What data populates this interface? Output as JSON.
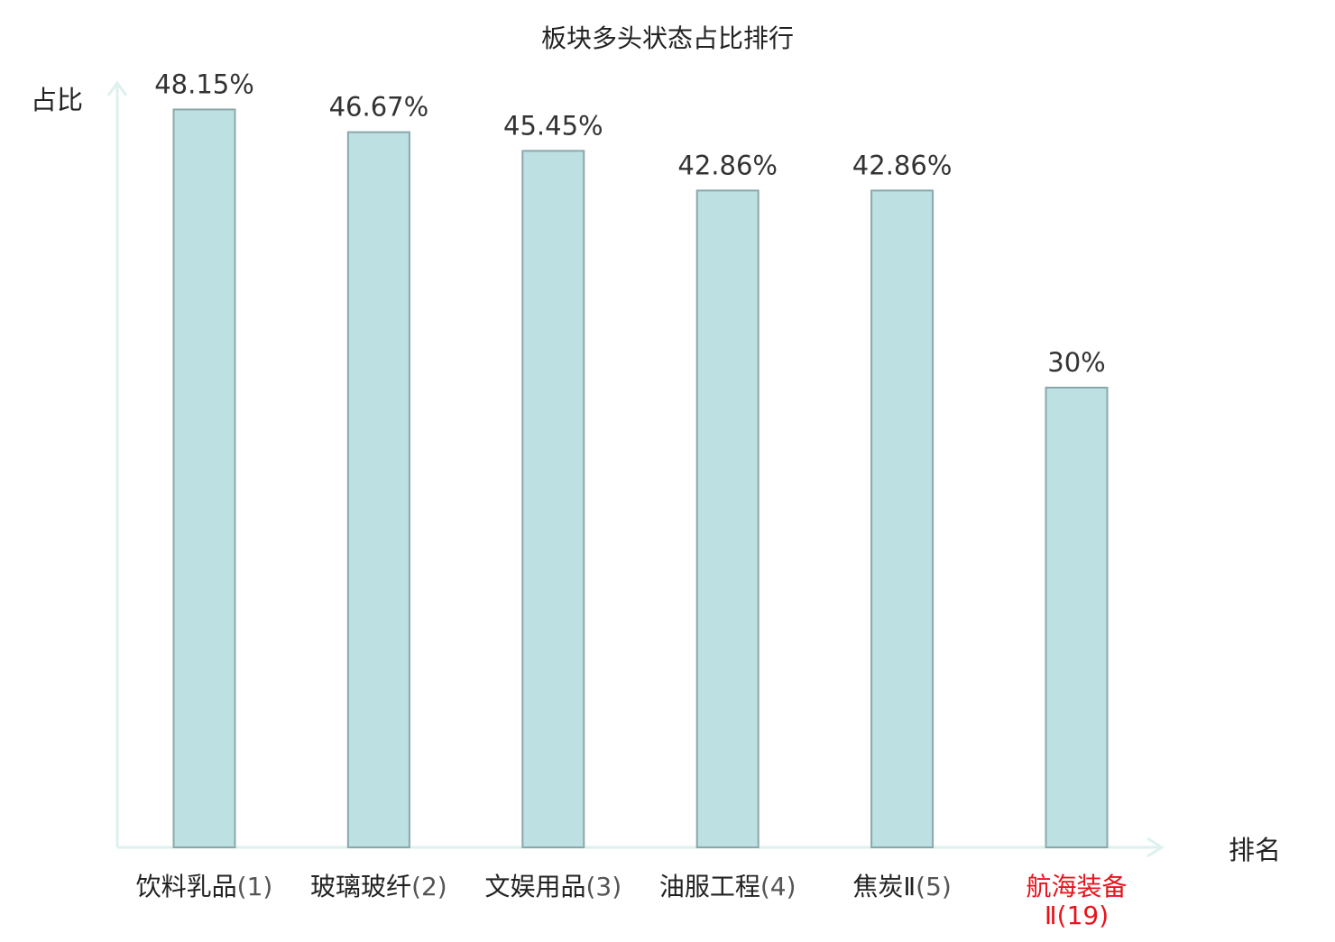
{
  "chart_data": {
    "type": "bar",
    "title": "板块多头状态占比排行",
    "ylabel": "占比",
    "xlabel": "排名",
    "ylim": [
      0,
      50
    ],
    "grid": false,
    "categories": [
      {
        "name": "饮料乳品",
        "rank": "(1)",
        "highlight": false
      },
      {
        "name": "玻璃玻纤",
        "rank": "(2)",
        "highlight": false
      },
      {
        "name": "文娱用品",
        "rank": "(3)",
        "highlight": false
      },
      {
        "name": "油服工程",
        "rank": "(4)",
        "highlight": false
      },
      {
        "name": "焦炭Ⅱ",
        "rank": "(5)",
        "highlight": false
      },
      {
        "name": "航海装备",
        "rank": "Ⅱ(19)",
        "highlight": true
      }
    ],
    "values": [
      48.15,
      46.67,
      45.45,
      42.86,
      42.86,
      30
    ],
    "value_labels": [
      "48.15%",
      "46.67%",
      "45.45%",
      "42.86%",
      "42.86%",
      "30%"
    ],
    "colors": {
      "bar_fill": "#bde0e3",
      "bar_stroke": "#8aa8aa",
      "axis": "#ddf1ee",
      "highlight": "#e8141c"
    }
  }
}
